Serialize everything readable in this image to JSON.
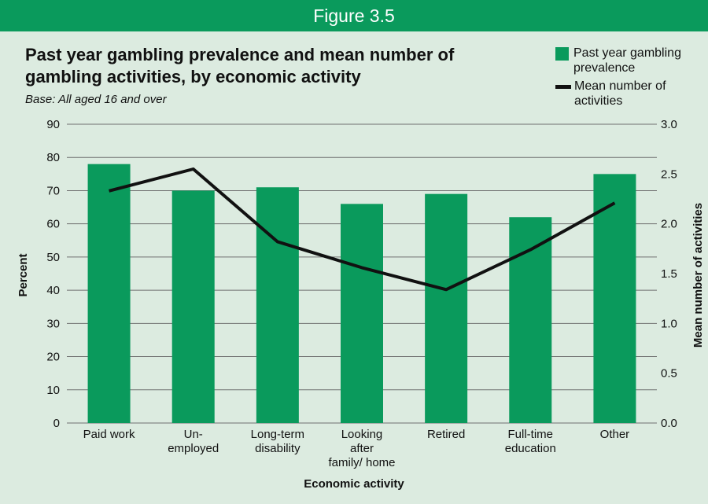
{
  "figure_label": "Figure 3.5",
  "colors": {
    "bar": "#0a9a5c",
    "line": "#111111",
    "background": "#dcebe0",
    "header": "#0a9a5c"
  },
  "chart_data": {
    "type": "bar",
    "title": "Past year gambling prevalence and mean number of gambling activities, by economic activity",
    "subtitle": "Base: All aged 16 and over",
    "xlabel": "Economic activity",
    "ylabel": "Percent",
    "y2label": "Mean number of activities",
    "categories": [
      "Paid work",
      "Un- employed",
      "Long-term disability",
      "Looking after family/ home",
      "Retired",
      "Full-time education",
      "Other"
    ],
    "category_lines": [
      [
        "Paid work"
      ],
      [
        "Un-",
        "employed"
      ],
      [
        "Long-term",
        "disability"
      ],
      [
        "Looking",
        "after",
        "family/ home"
      ],
      [
        "Retired"
      ],
      [
        "Full-time",
        "education"
      ],
      [
        "Other"
      ]
    ],
    "series": [
      {
        "name": "Past year gambling prevalence",
        "type": "bar",
        "axis": "left",
        "values": [
          78,
          70,
          71,
          66,
          69,
          62,
          75
        ]
      },
      {
        "name": "Mean number of activities",
        "type": "line",
        "axis": "right",
        "values": [
          2.33,
          2.55,
          1.82,
          1.56,
          1.34,
          1.74,
          2.21
        ]
      }
    ],
    "ylim": [
      0,
      90
    ],
    "yticks": [
      "0",
      "10",
      "20",
      "30",
      "40",
      "50",
      "60",
      "70",
      "80",
      "90"
    ],
    "y2lim": [
      0,
      3
    ],
    "y2ticks": [
      "0.0",
      "0.5",
      "1.0",
      "1.5",
      "2.0",
      "2.5",
      "3.0"
    ],
    "grid": true,
    "legend_position": "top-right"
  }
}
